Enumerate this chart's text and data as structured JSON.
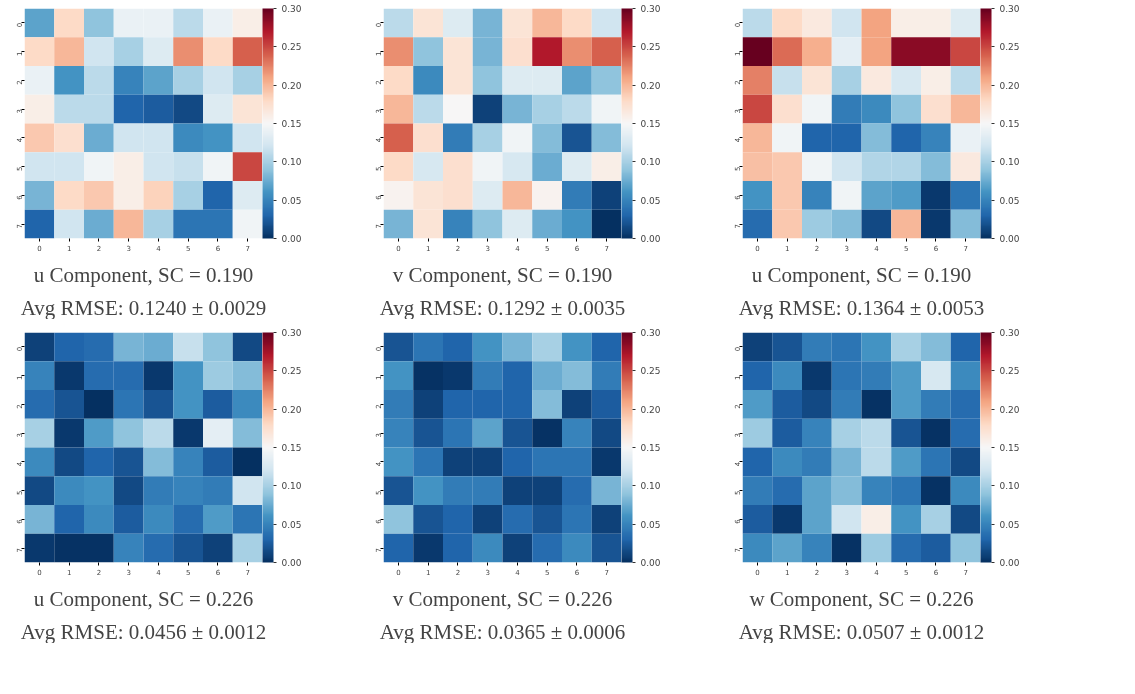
{
  "chart_data": [
    {
      "type": "heatmap",
      "title": "u Component, SC = 0.190",
      "subtitle": "Avg RMSE: 0.1240 ± 0.0029",
      "categories": [
        "0",
        "1",
        "2",
        "3",
        "4",
        "5",
        "6",
        "7"
      ],
      "y_categories": [
        "0",
        "1",
        "2",
        "3",
        "4",
        "5",
        "6",
        "7"
      ],
      "clim": [
        0,
        0.3
      ],
      "cticks": [
        {
          "value": 0,
          "label": "0.00"
        },
        {
          "value": 0.05,
          "label": "0.05"
        },
        {
          "value": 0.1,
          "label": "0.10"
        },
        {
          "value": 0.15,
          "label": "0.15"
        },
        {
          "value": 0.2,
          "label": "0.20"
        },
        {
          "value": 0.25,
          "label": "0.25"
        },
        {
          "value": 0.3,
          "label": "0.30"
        }
      ],
      "cells": [
        [
          0.07,
          0.18,
          0.09,
          0.14,
          0.14,
          0.11,
          0.14,
          0.16
        ],
        [
          0.18,
          0.2,
          0.12,
          0.1,
          0.13,
          0.22,
          0.18,
          0.24
        ],
        [
          0.14,
          0.06,
          0.11,
          0.05,
          0.07,
          0.1,
          0.12,
          0.1
        ],
        [
          0.16,
          0.11,
          0.11,
          0.03,
          0.025,
          0.015,
          0.13,
          0.17
        ],
        [
          0.19,
          0.175,
          0.075,
          0.12,
          0.12,
          0.055,
          0.06,
          0.12
        ],
        [
          0.12,
          0.12,
          0.145,
          0.16,
          0.12,
          0.115,
          0.145,
          0.25
        ],
        [
          0.08,
          0.18,
          0.19,
          0.16,
          0.185,
          0.1,
          0.03,
          0.13
        ],
        [
          0.03,
          0.12,
          0.075,
          0.2,
          0.1,
          0.04,
          0.04,
          0.145
        ]
      ]
    },
    {
      "type": "heatmap",
      "title": "v Component, SC = 0.190",
      "subtitle": "Avg RMSE: 0.1292 ± 0.0035",
      "categories": [
        "0",
        "1",
        "2",
        "3",
        "4",
        "5",
        "6",
        "7"
      ],
      "y_categories": [
        "0",
        "1",
        "2",
        "3",
        "4",
        "5",
        "6",
        "7"
      ],
      "clim": [
        0,
        0.3
      ],
      "cticks": [
        {
          "value": 0,
          "label": "0.00"
        },
        {
          "value": 0.05,
          "label": "0.05"
        },
        {
          "value": 0.1,
          "label": "0.10"
        },
        {
          "value": 0.15,
          "label": "0.15"
        },
        {
          "value": 0.2,
          "label": "0.20"
        },
        {
          "value": 0.25,
          "label": "0.25"
        },
        {
          "value": 0.3,
          "label": "0.30"
        }
      ],
      "cells": [
        [
          0.11,
          0.17,
          0.13,
          0.08,
          0.17,
          0.2,
          0.18,
          0.12
        ],
        [
          0.22,
          0.09,
          0.17,
          0.08,
          0.175,
          0.27,
          0.22,
          0.24
        ],
        [
          0.18,
          0.055,
          0.17,
          0.09,
          0.13,
          0.13,
          0.07,
          0.09
        ],
        [
          0.2,
          0.11,
          0.15,
          0.01,
          0.08,
          0.1,
          0.11,
          0.145
        ],
        [
          0.24,
          0.175,
          0.045,
          0.1,
          0.145,
          0.085,
          0.02,
          0.085
        ],
        [
          0.18,
          0.125,
          0.175,
          0.145,
          0.125,
          0.075,
          0.13,
          0.16
        ],
        [
          0.155,
          0.17,
          0.175,
          0.13,
          0.2,
          0.155,
          0.045,
          0.01
        ],
        [
          0.08,
          0.17,
          0.05,
          0.09,
          0.13,
          0.075,
          0.06,
          0.0
        ]
      ]
    },
    {
      "type": "heatmap",
      "title": "u Component, SC = 0.190",
      "subtitle": "Avg RMSE: 0.1364 ± 0.0053",
      "categories": [
        "0",
        "1",
        "2",
        "3",
        "4",
        "5",
        "6",
        "7"
      ],
      "y_categories": [
        "0",
        "1",
        "2",
        "3",
        "4",
        "5",
        "6",
        "7"
      ],
      "clim": [
        0,
        0.3
      ],
      "cticks": [
        {
          "value": 0,
          "label": "0.00"
        },
        {
          "value": 0.05,
          "label": "0.05"
        },
        {
          "value": 0.1,
          "label": "0.10"
        },
        {
          "value": 0.15,
          "label": "0.15"
        },
        {
          "value": 0.2,
          "label": "0.20"
        },
        {
          "value": 0.25,
          "label": "0.25"
        },
        {
          "value": 0.3,
          "label": "0.30"
        }
      ],
      "cells": [
        [
          0.11,
          0.18,
          0.165,
          0.12,
          0.21,
          0.16,
          0.16,
          0.13
        ],
        [
          0.3,
          0.235,
          0.205,
          0.135,
          0.21,
          0.285,
          0.285,
          0.25
        ],
        [
          0.225,
          0.115,
          0.17,
          0.1,
          0.165,
          0.125,
          0.16,
          0.11
        ],
        [
          0.25,
          0.175,
          0.145,
          0.045,
          0.055,
          0.09,
          0.175,
          0.2
        ],
        [
          0.2,
          0.145,
          0.03,
          0.03,
          0.085,
          0.03,
          0.05,
          0.14
        ],
        [
          0.195,
          0.19,
          0.145,
          0.12,
          0.105,
          0.105,
          0.085,
          0.165
        ],
        [
          0.06,
          0.19,
          0.05,
          0.145,
          0.07,
          0.065,
          0.005,
          0.04
        ],
        [
          0.035,
          0.19,
          0.095,
          0.085,
          0.015,
          0.2,
          0.005,
          0.085
        ]
      ]
    },
    {
      "type": "heatmap",
      "title": "u Component, SC = 0.226",
      "subtitle": "Avg RMSE: 0.0456 ± 0.0012",
      "categories": [
        "0",
        "1",
        "2",
        "3",
        "4",
        "5",
        "6",
        "7"
      ],
      "y_categories": [
        "0",
        "1",
        "2",
        "3",
        "4",
        "5",
        "6",
        "7"
      ],
      "clim": [
        0,
        0.3
      ],
      "cticks": [
        {
          "value": 0,
          "label": "0.00"
        },
        {
          "value": 0.05,
          "label": "0.05"
        },
        {
          "value": 0.1,
          "label": "0.10"
        },
        {
          "value": 0.15,
          "label": "0.15"
        },
        {
          "value": 0.2,
          "label": "0.20"
        },
        {
          "value": 0.25,
          "label": "0.25"
        },
        {
          "value": 0.3,
          "label": "0.30"
        }
      ],
      "cells": [
        [
          0.01,
          0.03,
          0.035,
          0.08,
          0.075,
          0.115,
          0.09,
          0.015
        ],
        [
          0.05,
          0.005,
          0.035,
          0.035,
          0.005,
          0.06,
          0.095,
          0.085
        ],
        [
          0.035,
          0.02,
          0.0,
          0.04,
          0.02,
          0.06,
          0.025,
          0.055
        ],
        [
          0.1,
          0.005,
          0.065,
          0.09,
          0.11,
          0.005,
          0.135,
          0.085
        ],
        [
          0.055,
          0.015,
          0.03,
          0.02,
          0.085,
          0.05,
          0.025,
          0.0
        ],
        [
          0.015,
          0.055,
          0.06,
          0.015,
          0.045,
          0.05,
          0.045,
          0.12
        ],
        [
          0.08,
          0.03,
          0.055,
          0.025,
          0.055,
          0.035,
          0.065,
          0.04
        ],
        [
          0.005,
          0.002,
          0.002,
          0.05,
          0.035,
          0.02,
          0.01,
          0.1
        ]
      ]
    },
    {
      "type": "heatmap",
      "title": "v Component, SC = 0.226",
      "subtitle": "Avg RMSE: 0.0365 ± 0.0006",
      "categories": [
        "0",
        "1",
        "2",
        "3",
        "4",
        "5",
        "6",
        "7"
      ],
      "y_categories": [
        "0",
        "1",
        "2",
        "3",
        "4",
        "5",
        "6",
        "7"
      ],
      "clim": [
        0,
        0.3
      ],
      "cticks": [
        {
          "value": 0,
          "label": "0.00"
        },
        {
          "value": 0.05,
          "label": "0.05"
        },
        {
          "value": 0.1,
          "label": "0.10"
        },
        {
          "value": 0.15,
          "label": "0.15"
        },
        {
          "value": 0.2,
          "label": "0.20"
        },
        {
          "value": 0.25,
          "label": "0.25"
        },
        {
          "value": 0.3,
          "label": "0.30"
        }
      ],
      "cells": [
        [
          0.02,
          0.04,
          0.03,
          0.06,
          0.08,
          0.1,
          0.06,
          0.03
        ],
        [
          0.06,
          0.002,
          0.005,
          0.045,
          0.03,
          0.075,
          0.085,
          0.045
        ],
        [
          0.045,
          0.01,
          0.03,
          0.03,
          0.03,
          0.085,
          0.01,
          0.025
        ],
        [
          0.05,
          0.02,
          0.04,
          0.07,
          0.02,
          0.002,
          0.05,
          0.015
        ],
        [
          0.06,
          0.04,
          0.01,
          0.01,
          0.03,
          0.04,
          0.04,
          0.005
        ],
        [
          0.02,
          0.06,
          0.045,
          0.045,
          0.01,
          0.01,
          0.035,
          0.08
        ],
        [
          0.09,
          0.02,
          0.03,
          0.01,
          0.035,
          0.02,
          0.04,
          0.01
        ],
        [
          0.03,
          0.005,
          0.03,
          0.055,
          0.01,
          0.035,
          0.055,
          0.02
        ]
      ]
    },
    {
      "type": "heatmap",
      "title": "w Component, SC = 0.226",
      "subtitle": "Avg RMSE: 0.0507 ± 0.0012",
      "categories": [
        "0",
        "1",
        "2",
        "3",
        "4",
        "5",
        "6",
        "7"
      ],
      "y_categories": [
        "0",
        "1",
        "2",
        "3",
        "4",
        "5",
        "6",
        "7"
      ],
      "clim": [
        0,
        0.3
      ],
      "cticks": [
        {
          "value": 0,
          "label": "0.00"
        },
        {
          "value": 0.05,
          "label": "0.05"
        },
        {
          "value": 0.1,
          "label": "0.10"
        },
        {
          "value": 0.15,
          "label": "0.15"
        },
        {
          "value": 0.2,
          "label": "0.20"
        },
        {
          "value": 0.25,
          "label": "0.25"
        },
        {
          "value": 0.3,
          "label": "0.30"
        }
      ],
      "cells": [
        [
          0.01,
          0.02,
          0.045,
          0.04,
          0.06,
          0.1,
          0.085,
          0.03
        ],
        [
          0.03,
          0.055,
          0.005,
          0.04,
          0.045,
          0.065,
          0.125,
          0.055
        ],
        [
          0.065,
          0.025,
          0.015,
          0.045,
          0.002,
          0.065,
          0.045,
          0.035
        ],
        [
          0.095,
          0.025,
          0.05,
          0.1,
          0.11,
          0.02,
          0.002,
          0.035
        ],
        [
          0.03,
          0.055,
          0.045,
          0.08,
          0.11,
          0.065,
          0.04,
          0.015
        ],
        [
          0.045,
          0.035,
          0.07,
          0.085,
          0.05,
          0.04,
          0.002,
          0.055
        ],
        [
          0.025,
          0.005,
          0.07,
          0.12,
          0.16,
          0.06,
          0.1,
          0.015
        ],
        [
          0.055,
          0.07,
          0.05,
          0.002,
          0.095,
          0.035,
          0.025,
          0.09
        ]
      ]
    }
  ]
}
